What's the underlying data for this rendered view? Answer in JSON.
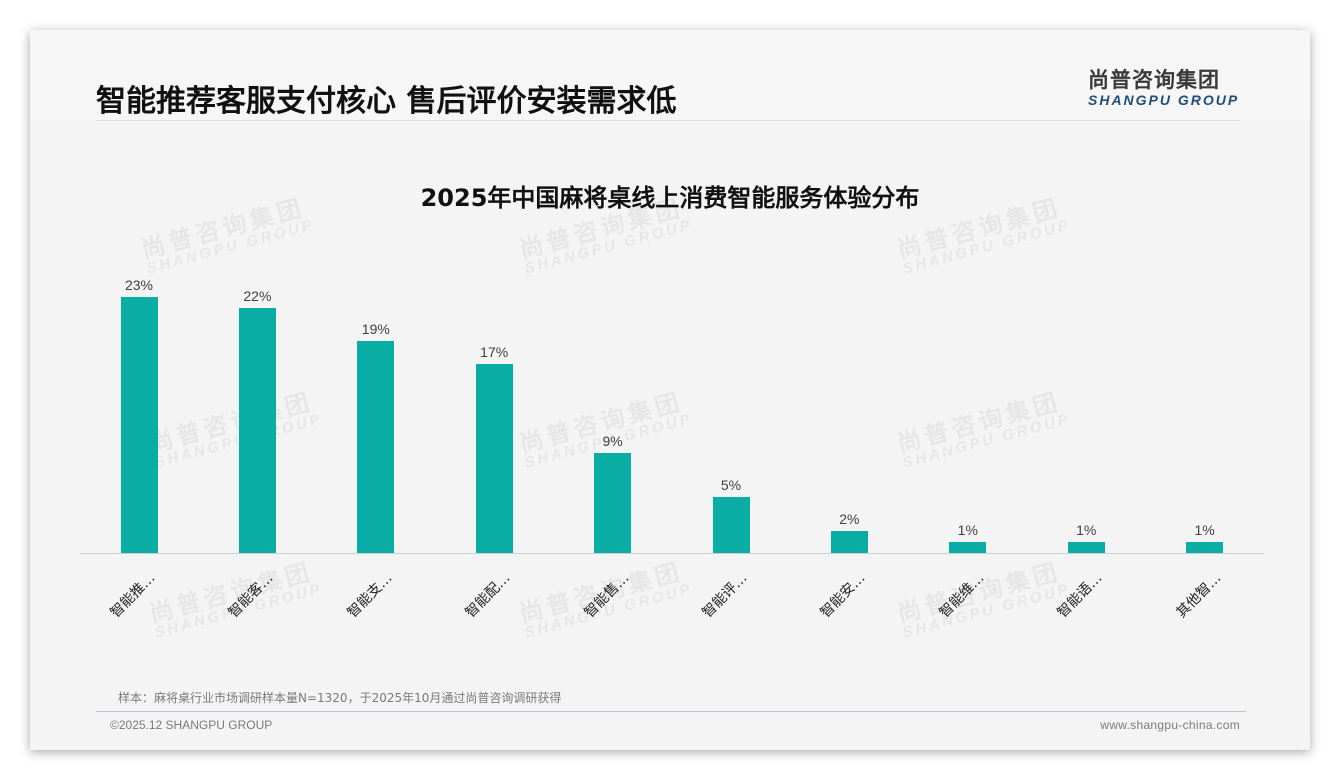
{
  "header": {
    "title": "智能推荐客服支付核心 售后评价安装需求低",
    "logo_cn": "尚普咨询集团",
    "logo_en": "SHANGPU GROUP"
  },
  "watermark": {
    "cn": "尚普咨询集团",
    "en": "SHANGPU GROUP"
  },
  "chart_data": {
    "type": "bar",
    "title": "2025年中国麻将桌线上消费智能服务体验分布",
    "categories": [
      "智能推…",
      "智能客…",
      "智能支…",
      "智能配…",
      "智能售…",
      "智能评…",
      "智能安…",
      "智能维…",
      "智能语…",
      "其他智…"
    ],
    "values": [
      23,
      22,
      19,
      17,
      9,
      5,
      2,
      1,
      1,
      1
    ],
    "value_labels": [
      "23%",
      "22%",
      "19%",
      "17%",
      "9%",
      "5%",
      "2%",
      "1%",
      "1%",
      "1%"
    ],
    "unit": "%",
    "xlabel": "",
    "ylabel": "",
    "ylim": [
      0,
      25
    ],
    "grid": false,
    "legend": "none",
    "bar_color": "#0aada4"
  },
  "footer": {
    "note": "样本：麻将桌行业市场调研样本量N=1320，于2025年10月通过尚普咨询调研获得",
    "copyright": "©2025.12 SHANGPU GROUP",
    "website": "www.shangpu-china.com"
  }
}
